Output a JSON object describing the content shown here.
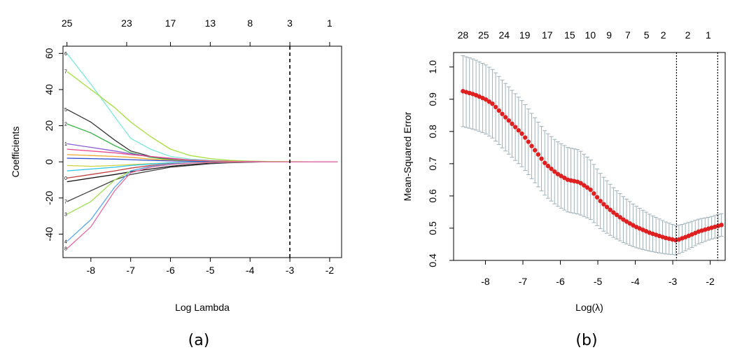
{
  "chart_data": [
    {
      "type": "line",
      "caption": "(a)",
      "xlabel": "Log Lambda",
      "ylabel": "Coefficients",
      "xlim": [
        -8.7,
        -1.7
      ],
      "ylim": [
        -53,
        64
      ],
      "x_ticks": [
        -8,
        -7,
        -6,
        -5,
        -4,
        -3,
        -2
      ],
      "y_ticks": [
        -40,
        -20,
        0,
        20,
        40,
        60
      ],
      "top_ticks": [
        {
          "x": -8.6,
          "label": "25"
        },
        {
          "x": -7.1,
          "label": "23"
        },
        {
          "x": -6.0,
          "label": "17"
        },
        {
          "x": -5.0,
          "label": "13"
        },
        {
          "x": -4.0,
          "label": "8"
        },
        {
          "x": -3.0,
          "label": "3"
        },
        {
          "x": -2.0,
          "label": "1"
        }
      ],
      "vline": -3.0,
      "x": [
        -8.6,
        -8.0,
        -7.4,
        -7.0,
        -6.5,
        -6.0,
        -5.5,
        -5.0,
        -4.5,
        -4.0,
        -3.5,
        -3.0,
        -2.5,
        -2.0,
        -1.8
      ],
      "series": [
        {
          "label": "6",
          "color": "#7de8dc",
          "values": [
            60,
            43,
            25,
            13,
            7,
            3,
            1.5,
            0.8,
            0.4,
            0.2,
            0.1,
            0,
            0,
            0,
            0
          ]
        },
        {
          "label": "7",
          "color": "#a4e03c",
          "values": [
            50,
            40,
            30,
            22,
            14,
            7,
            3.5,
            1.8,
            0.8,
            0.4,
            0.2,
            0.1,
            0,
            0,
            0
          ]
        },
        {
          "label": "5",
          "color": "#333333",
          "values": [
            29,
            22,
            12,
            6,
            3,
            1.5,
            0.8,
            0.4,
            0.2,
            0.1,
            0,
            0,
            0,
            0,
            0
          ]
        },
        {
          "label": "2",
          "color": "#3cb34a",
          "values": [
            21,
            16,
            9,
            5,
            2.5,
            1.2,
            0.6,
            0.3,
            0.1,
            0,
            0,
            0,
            0,
            0,
            0
          ]
        },
        {
          "label": "1",
          "color": "#8a5cd6",
          "values": [
            10,
            8,
            6,
            4.5,
            3,
            1.8,
            1,
            0.5,
            0.2,
            0.1,
            0,
            0,
            0,
            0,
            0
          ]
        },
        {
          "label": "",
          "color": "#e84a8a",
          "values": [
            7,
            6,
            5,
            4,
            3,
            2,
            1,
            0.6,
            0.3,
            0.1,
            0,
            0,
            0,
            0,
            0
          ]
        },
        {
          "label": "",
          "color": "#f0a830",
          "values": [
            4,
            3.5,
            3,
            2.5,
            1.5,
            1,
            0.5,
            0.3,
            0.1,
            0,
            0,
            0,
            0,
            0,
            0
          ]
        },
        {
          "label": "",
          "color": "#2a4fd0",
          "values": [
            2,
            1.8,
            1.5,
            1.2,
            0.8,
            0.5,
            0.3,
            0.1,
            0,
            0,
            0,
            0,
            0,
            0,
            0
          ]
        },
        {
          "label": "",
          "color": "#d0d040",
          "values": [
            -2,
            -2.5,
            -2,
            -1.5,
            -1,
            -0.6,
            -0.3,
            -0.1,
            0,
            0,
            0,
            0,
            0,
            0,
            0
          ]
        },
        {
          "label": "",
          "color": "#29c4e8",
          "values": [
            -5,
            -4,
            -3,
            -2,
            -1.2,
            -0.6,
            -0.3,
            -0.1,
            0,
            0,
            0,
            0,
            0,
            0,
            0
          ]
        },
        {
          "label": "0",
          "color": "#c04040",
          "values": [
            -9,
            -7,
            -5,
            -3.5,
            -2,
            -1,
            -0.5,
            -0.2,
            0,
            0,
            0,
            0,
            0,
            0,
            0
          ]
        },
        {
          "label": "",
          "color": "#111111",
          "values": [
            -11,
            -9,
            -7,
            -5.5,
            -4,
            -2.5,
            -1.5,
            -0.8,
            -0.3,
            -0.1,
            0,
            0,
            0,
            0,
            0
          ]
        },
        {
          "label": "7",
          "color": "#444444",
          "values": [
            -22,
            -16,
            -10,
            -7,
            -5,
            -3,
            -2,
            -1,
            -0.5,
            -0.2,
            0,
            0,
            0,
            0,
            0
          ]
        },
        {
          "label": "3",
          "color": "#9ee04e",
          "values": [
            -29,
            -22,
            -10,
            -5,
            -2.5,
            -1.2,
            -0.6,
            -0.3,
            -0.1,
            0,
            0,
            0,
            0,
            0,
            0
          ]
        },
        {
          "label": "4",
          "color": "#5aa8f0",
          "values": [
            -44,
            -32,
            -14,
            -5,
            -2.5,
            -1.2,
            -0.6,
            -0.3,
            -0.1,
            0,
            0,
            0,
            0,
            0,
            0
          ]
        },
        {
          "label": "8",
          "color": "#e86aa0",
          "values": [
            -48,
            -36,
            -16,
            -6,
            -3,
            -1.5,
            -0.7,
            -0.3,
            -0.1,
            0,
            0,
            0,
            0,
            0,
            0
          ]
        }
      ]
    },
    {
      "type": "scatter",
      "caption": "(b)",
      "xlabel": "Log(λ)",
      "ylabel": "Mean-Squared Error",
      "xlim": [
        -8.85,
        -1.6
      ],
      "ylim": [
        0.4,
        1.045
      ],
      "x_ticks": [
        -8,
        -7,
        -6,
        -5,
        -4,
        -3,
        -2
      ],
      "y_ticks": [
        0.4,
        0.5,
        0.6,
        0.7,
        0.8,
        0.9,
        1.0
      ],
      "y_tick_labels": [
        "0.4",
        "0.5",
        "0.6",
        "0.7",
        "0.8",
        "0.9",
        "1.0"
      ],
      "top_ticks": [
        {
          "x": -8.6,
          "label": "28"
        },
        {
          "x": -8.05,
          "label": "25"
        },
        {
          "x": -7.5,
          "label": "24"
        },
        {
          "x": -6.95,
          "label": "19"
        },
        {
          "x": -6.35,
          "label": "17"
        },
        {
          "x": -5.75,
          "label": "15"
        },
        {
          "x": -5.2,
          "label": "10"
        },
        {
          "x": -4.7,
          "label": "9"
        },
        {
          "x": -4.2,
          "label": "7"
        },
        {
          "x": -3.7,
          "label": "5"
        },
        {
          "x": -3.25,
          "label": "2"
        },
        {
          "x": -2.6,
          "label": "2"
        },
        {
          "x": -2.05,
          "label": "1"
        }
      ],
      "vlines": [
        -2.9,
        -1.8
      ],
      "marker_color": "#e02020",
      "errorbar_color": "#9fb0b8",
      "curve": [
        [
          -8.6,
          0.925
        ],
        [
          -8.3,
          0.915
        ],
        [
          -8.0,
          0.9
        ],
        [
          -7.8,
          0.885
        ],
        [
          -7.6,
          0.86
        ],
        [
          -7.3,
          0.825
        ],
        [
          -7.0,
          0.79
        ],
        [
          -6.7,
          0.745
        ],
        [
          -6.4,
          0.7
        ],
        [
          -6.1,
          0.67
        ],
        [
          -5.8,
          0.65
        ],
        [
          -5.5,
          0.643
        ],
        [
          -5.2,
          0.62
        ],
        [
          -4.9,
          0.58
        ],
        [
          -4.6,
          0.55
        ],
        [
          -4.3,
          0.525
        ],
        [
          -4.0,
          0.505
        ],
        [
          -3.6,
          0.485
        ],
        [
          -3.2,
          0.47
        ],
        [
          -2.9,
          0.462
        ],
        [
          -2.6,
          0.475
        ],
        [
          -2.3,
          0.49
        ],
        [
          -2.0,
          0.5
        ],
        [
          -1.7,
          0.51
        ]
      ],
      "error_halfwidth": [
        [
          -8.6,
          0.11
        ],
        [
          -7.5,
          0.105
        ],
        [
          -6.5,
          0.1
        ],
        [
          -5.5,
          0.1
        ],
        [
          -4.5,
          0.075
        ],
        [
          -3.5,
          0.055
        ],
        [
          -2.9,
          0.045
        ],
        [
          -2.0,
          0.035
        ],
        [
          -1.7,
          0.035
        ]
      ]
    }
  ]
}
